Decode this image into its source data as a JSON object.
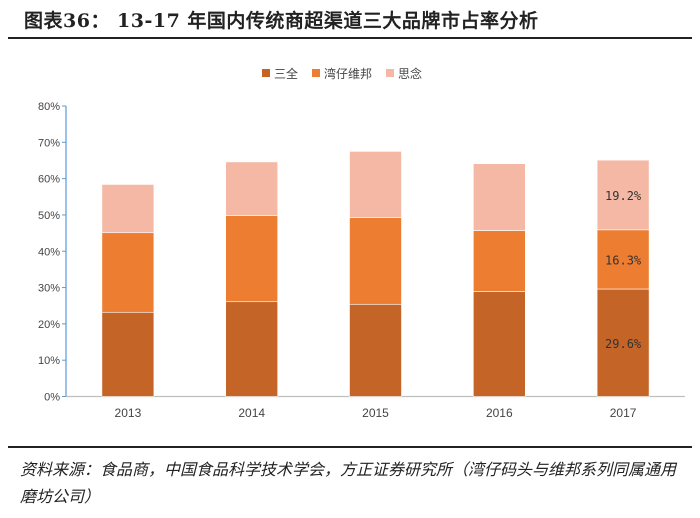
{
  "title": "图表36：  13-17 年国内传统商超渠道三大品牌市占率分析",
  "source": "资料来源：食品商，中国食品科学技术学会，方正证券研究所（湾仔码头与维邦系列同属通用磨坊公司）",
  "chart_data": {
    "type": "bar",
    "stacked": true,
    "categories": [
      "2013",
      "2014",
      "2015",
      "2016",
      "2017"
    ],
    "series": [
      {
        "name": "三全",
        "color": "#C46527",
        "values": [
          23.2,
          26.1,
          25.4,
          28.9,
          29.6
        ]
      },
      {
        "name": "湾仔维邦",
        "color": "#ED7D31",
        "values": [
          21.9,
          23.7,
          23.9,
          16.8,
          16.3
        ]
      },
      {
        "name": "思念",
        "color": "#F4B8A4",
        "values": [
          13.3,
          14.8,
          18.2,
          18.4,
          19.2
        ]
      }
    ],
    "data_labels": {
      "2017": [
        "29.6%",
        "16.3%",
        "19.2%"
      ]
    },
    "ylim": [
      0,
      80
    ],
    "yticks": [
      "0%",
      "10%",
      "20%",
      "30%",
      "40%",
      "50%",
      "60%",
      "70%",
      "80%"
    ],
    "legend": "top",
    "grid": false
  }
}
